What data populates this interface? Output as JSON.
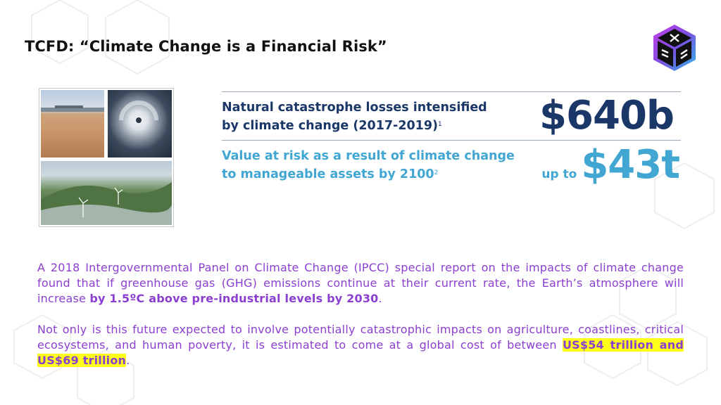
{
  "header": {
    "title": "TCFD: “Climate Change is a Financial Risk”",
    "logo_icon": "dna-cube-logo-icon"
  },
  "images": {
    "desert": "desert-photo",
    "hurricane": "hurricane-satellite-photo",
    "hills": "wind-turbine-hills-photo"
  },
  "stats": {
    "item1": {
      "label_line1": "Natural catastrophe losses intensified",
      "label_line2": "by climate change (2017-2019)",
      "footnote": "1",
      "value": "$640b"
    },
    "item2": {
      "label_line1": "Value at risk as a result of climate change",
      "label_line2": "to manageable assets by 2100",
      "footnote": "2",
      "prefix": "up to",
      "value": "$43t"
    }
  },
  "body": {
    "para1_text": "A 2018 Intergovernmental Panel on Climate Change (IPCC) special report on the impacts of climate change found that if greenhouse gas (GHG) emissions continue at their current rate, the Earth’s atmosphere will increase ",
    "para1_bold": "by 1.5ºC above pre-industrial levels by 2030",
    "para1_end": ".",
    "para2_text": "Not only is this future expected to involve potentially catastrophic impacts on agriculture, coastlines, critical ecosystems, and human poverty, it is estimated to come at a global cost of between ",
    "para2_highlight": "US$54 trillion and US$69 trillion",
    "para2_end": "."
  },
  "colors": {
    "dark_blue": "#1b3768",
    "light_blue": "#42a6d3",
    "purple": "#8a3fd0",
    "highlight": "#ffff1a"
  }
}
